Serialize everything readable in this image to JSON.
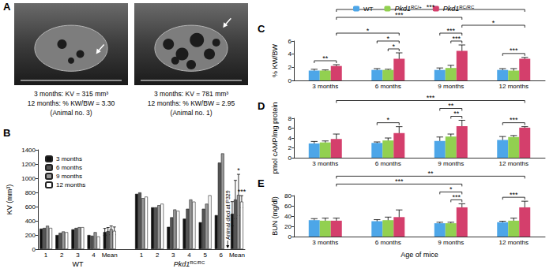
{
  "images": {
    "panel_label": "A",
    "items": [
      {
        "caption": [
          "3 months: KV = 315 mm³",
          "12 months: % KW/BW = 3.30",
          "(Animal no. 3)"
        ]
      },
      {
        "caption": [
          "3 months: KV = 781 mm³",
          "12 months: % KW/BW = 2.95",
          "(Animal no. 1)"
        ]
      }
    ]
  },
  "chart_data": [
    {
      "panel_label": "B",
      "type": "bar",
      "ylabel": "KV (mm³)",
      "categories": [
        "1",
        "2",
        "3",
        "4",
        "Mean",
        null,
        "1",
        "2",
        "3",
        "4",
        "5",
        "6",
        "Mean"
      ],
      "group_labels": [
        "WT",
        "Pkd1RC/RC"
      ],
      "series": [
        {
          "name": "3 months",
          "color": "#111111",
          "values": [
            290,
            200,
            280,
            200,
            243,
            null,
            780,
            590,
            315,
            430,
            380,
            480,
            500
          ],
          "errors": [
            null,
            null,
            null,
            null,
            50,
            null,
            null,
            null,
            null,
            null,
            null,
            null,
            170
          ]
        },
        {
          "name": "6 months",
          "color": "#555555",
          "values": [
            300,
            230,
            300,
            190,
            255,
            null,
            800,
            590,
            450,
            570,
            570,
            1220,
            700
          ],
          "errors": [
            null,
            null,
            null,
            null,
            50,
            null,
            null,
            null,
            null,
            null,
            null,
            null,
            270
          ]
        },
        {
          "name": "9 months",
          "color": "#999999",
          "values": [
            330,
            250,
            310,
            240,
            283,
            null,
            720,
            620,
            560,
            700,
            640,
            1350,
            765
          ],
          "errors": [
            null,
            null,
            null,
            null,
            45,
            null,
            null,
            null,
            null,
            null,
            null,
            null,
            290
          ]
        },
        {
          "name": "12 months",
          "color": "#ffffff",
          "values": [
            300,
            240,
            310,
            180,
            258,
            null,
            740,
            640,
            540,
            670,
            760,
            null,
            670
          ],
          "errors": [
            null,
            null,
            null,
            null,
            55,
            null,
            null,
            null,
            null,
            null,
            null,
            null,
            85
          ]
        }
      ],
      "ylim": [
        0,
        1400
      ],
      "yticks": [
        0,
        200,
        400,
        600,
        800,
        1000,
        1200,
        1400
      ],
      "grid": false,
      "legend": "upper left",
      "annotations": [
        {
          "text": "*",
          "group": "Pkd1RC/RC",
          "category": "Mean",
          "series": "9 months"
        },
        {
          "text": "***",
          "group": "Pkd1RC/RC",
          "category": "Mean",
          "series": "12 months"
        },
        {
          "text": "Animal died at P329",
          "group": "Pkd1RC/RC",
          "category": "6",
          "series": "12 months"
        }
      ]
    },
    {
      "panel_label": "C",
      "type": "bar",
      "ylabel": "% KW/BW",
      "categories": [
        "3 months",
        "6 months",
        "9 months",
        "12 months"
      ],
      "series": [
        {
          "name": "WT",
          "color": "#4da6e8",
          "values": [
            1.5,
            1.6,
            1.6,
            1.6
          ],
          "errors": [
            0.2,
            0.2,
            0.3,
            0.2
          ]
        },
        {
          "name": "Pkd1RC/+",
          "color": "#92d050",
          "values": [
            1.5,
            1.6,
            1.9,
            1.5
          ],
          "errors": [
            0.1,
            0.1,
            0.4,
            0.3
          ]
        },
        {
          "name": "Pkd1RC/RC",
          "color": "#d43f6c",
          "values": [
            2.2,
            3.3,
            4.5,
            3.3
          ],
          "errors": [
            0.2,
            0.9,
            0.9,
            0.2
          ]
        }
      ],
      "ylim": [
        0,
        6
      ],
      "yticks": [
        0,
        2,
        4,
        6
      ],
      "grid": false,
      "legend": "top",
      "brackets": [
        {
          "text": "**",
          "from": [
            "3 months",
            "WT"
          ],
          "to": [
            "3 months",
            "Pkd1RC/RC"
          ]
        },
        {
          "text": "*",
          "from": [
            "6 months",
            "WT"
          ],
          "to": [
            "6 months",
            "Pkd1RC/RC"
          ]
        },
        {
          "text": "*",
          "from": [
            "6 months",
            "Pkd1RC/+"
          ],
          "to": [
            "6 months",
            "Pkd1RC/RC"
          ]
        },
        {
          "text": "***",
          "from": [
            "9 months",
            "WT"
          ],
          "to": [
            "9 months",
            "Pkd1RC/RC"
          ]
        },
        {
          "text": "***",
          "from": [
            "9 months",
            "Pkd1RC/+"
          ],
          "to": [
            "9 months",
            "Pkd1RC/RC"
          ]
        },
        {
          "text": "***",
          "from": [
            "12 months",
            "WT"
          ],
          "to": [
            "12 months",
            "Pkd1RC/RC"
          ]
        },
        {
          "text": "*",
          "from": [
            "3 months",
            "Pkd1RC/RC"
          ],
          "to": [
            "6 months",
            "Pkd1RC/RC"
          ]
        },
        {
          "text": "***",
          "from": [
            "3 months",
            "Pkd1RC/RC"
          ],
          "to": [
            "9 months",
            "Pkd1RC/RC"
          ]
        },
        {
          "text": "*",
          "from": [
            "9 months",
            "Pkd1RC/RC"
          ],
          "to": [
            "12 months",
            "Pkd1RC/RC"
          ]
        },
        {
          "text": "***",
          "from": [
            "3 months",
            "Pkd1RC/RC"
          ],
          "to": [
            "12 months",
            "Pkd1RC/RC"
          ]
        }
      ]
    },
    {
      "panel_label": "D",
      "type": "bar",
      "ylabel": "pmol cAMP/mg protein",
      "categories": [
        "3 months",
        "6 months",
        "9 months",
        "12 months"
      ],
      "series": [
        {
          "name": "WT",
          "color": "#4da6e8",
          "values": [
            2.9,
            3.0,
            3.4,
            3.6
          ],
          "errors": [
            0.4,
            0.2,
            0.8,
            0.7
          ]
        },
        {
          "name": "Pkd1RC/+",
          "color": "#92d050",
          "values": [
            3.1,
            3.5,
            4.3,
            4.2
          ],
          "errors": [
            0.3,
            0.5,
            0.5,
            0.3
          ]
        },
        {
          "name": "Pkd1RC/RC",
          "color": "#d43f6c",
          "values": [
            3.8,
            5.0,
            6.4,
            6.1
          ],
          "errors": [
            1.0,
            1.3,
            1.2,
            0.2
          ]
        }
      ],
      "ylim": [
        0,
        8
      ],
      "yticks": [
        0,
        2,
        4,
        6,
        8
      ],
      "grid": false,
      "brackets": [
        {
          "text": "*",
          "from": [
            "6 months",
            "WT"
          ],
          "to": [
            "6 months",
            "Pkd1RC/RC"
          ]
        },
        {
          "text": "**",
          "from": [
            "9 months",
            "WT"
          ],
          "to": [
            "9 months",
            "Pkd1RC/RC"
          ]
        },
        {
          "text": "**",
          "from": [
            "9 months",
            "Pkd1RC/+"
          ],
          "to": [
            "9 months",
            "Pkd1RC/RC"
          ]
        },
        {
          "text": "***",
          "from": [
            "12 months",
            "WT"
          ],
          "to": [
            "12 months",
            "Pkd1RC/RC"
          ]
        },
        {
          "text": "***",
          "from": [
            "3 months",
            "Pkd1RC/RC"
          ],
          "to": [
            "12 months",
            "Pkd1RC/RC"
          ]
        }
      ]
    },
    {
      "panel_label": "E",
      "type": "bar",
      "ylabel": "BUN (mg/dl)",
      "xlabel": "Age of mice",
      "categories": [
        "3 months",
        "6 months",
        "9 months",
        "12 months"
      ],
      "series": [
        {
          "name": "WT",
          "color": "#4da6e8",
          "values": [
            32,
            30,
            26,
            28
          ],
          "errors": [
            3,
            3,
            2,
            2
          ]
        },
        {
          "name": "Pkd1RC/+",
          "color": "#92d050",
          "values": [
            31,
            32,
            26,
            31
          ],
          "errors": [
            5,
            6,
            2,
            5
          ]
        },
        {
          "name": "Pkd1RC/RC",
          "color": "#d43f6c",
          "values": [
            31,
            38,
            57,
            57
          ],
          "errors": [
            5,
            14,
            7,
            12
          ]
        }
      ],
      "ylim": [
        0,
        80
      ],
      "yticks": [
        0,
        20,
        40,
        60,
        80
      ],
      "grid": false,
      "brackets": [
        {
          "text": "*",
          "from": [
            "9 months",
            "WT"
          ],
          "to": [
            "9 months",
            "Pkd1RC/RC"
          ]
        },
        {
          "text": "***",
          "from": [
            "9 months",
            "Pkd1RC/+"
          ],
          "to": [
            "9 months",
            "Pkd1RC/RC"
          ]
        },
        {
          "text": "***",
          "from": [
            "12 months",
            "WT"
          ],
          "to": [
            "12 months",
            "Pkd1RC/RC"
          ]
        },
        {
          "text": "***",
          "from": [
            "3 months",
            "Pkd1RC/RC"
          ],
          "to": [
            "9 months",
            "Pkd1RC/RC"
          ]
        },
        {
          "text": "**",
          "from": [
            "3 months",
            "Pkd1RC/RC"
          ],
          "to": [
            "12 months",
            "Pkd1RC/RC"
          ]
        }
      ]
    }
  ]
}
